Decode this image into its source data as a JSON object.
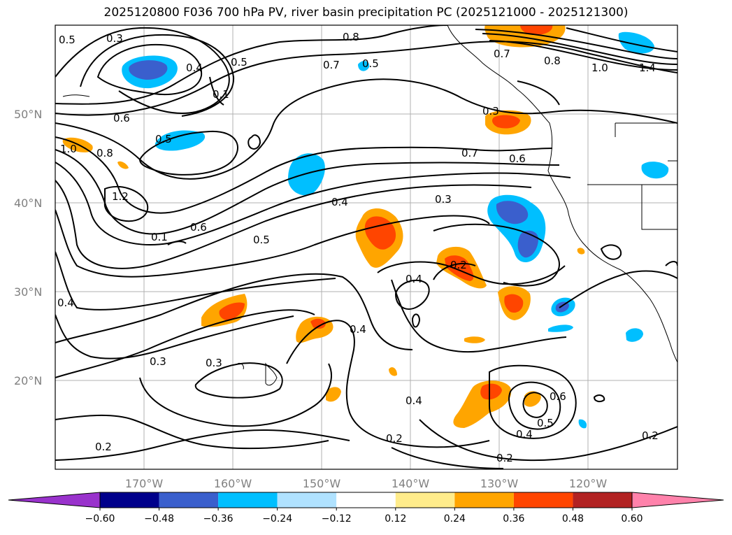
{
  "title": "2025120800 F036 700 hPa PV, river basin precipitation PC (2025121000 - 2025121300)",
  "map": {
    "lat_labels": [
      "50°N",
      "40°N",
      "30°N",
      "20°N"
    ],
    "lon_labels": [
      "170°W",
      "160°W",
      "150°W",
      "140°W",
      "130°W",
      "120°W"
    ],
    "contour_labels": [
      "0.5",
      "0.3",
      "0.4",
      "0.5",
      "0.8",
      "0.5",
      "0.7",
      "0.7",
      "0.8",
      "1.0",
      "1.4",
      "0.6",
      "0.5",
      "1.0",
      "0.8",
      "1.2",
      "0.6",
      "0.1",
      "0.4",
      "0.5",
      "0.3",
      "0.3",
      "0.7",
      "0.6",
      "0.4",
      "0.2",
      "0.4",
      "0.3",
      "0.3",
      "0.4",
      "0.4",
      "0.2",
      "0.6",
      "0.5",
      "0.4",
      "0.2",
      "0.2",
      "0.2",
      "0.1"
    ],
    "colors": {
      "neg_060": "#9932CC",
      "neg_048": "#00008B",
      "neg_036": "#3A5FCD",
      "neg_024": "#00BFFF",
      "neg_012": "#B0E2FF",
      "neutral": "#FFFFFF",
      "pos_012": "#FFEC8B",
      "pos_024": "#FFA500",
      "pos_036": "#FF4500",
      "pos_048": "#B22222",
      "pos_060": "#FF82AB"
    }
  },
  "colorbar": {
    "ticks": [
      "−0.60",
      "−0.48",
      "−0.36",
      "−0.24",
      "−0.12",
      "0.12",
      "0.24",
      "0.36",
      "0.48",
      "0.60"
    ],
    "colors": [
      "#9932CC",
      "#00008B",
      "#3A5FCD",
      "#00BFFF",
      "#B0E2FF",
      "#FFFFFF",
      "#FFEC8B",
      "#FFA500",
      "#FF4500",
      "#B22222",
      "#FF82AB"
    ]
  }
}
